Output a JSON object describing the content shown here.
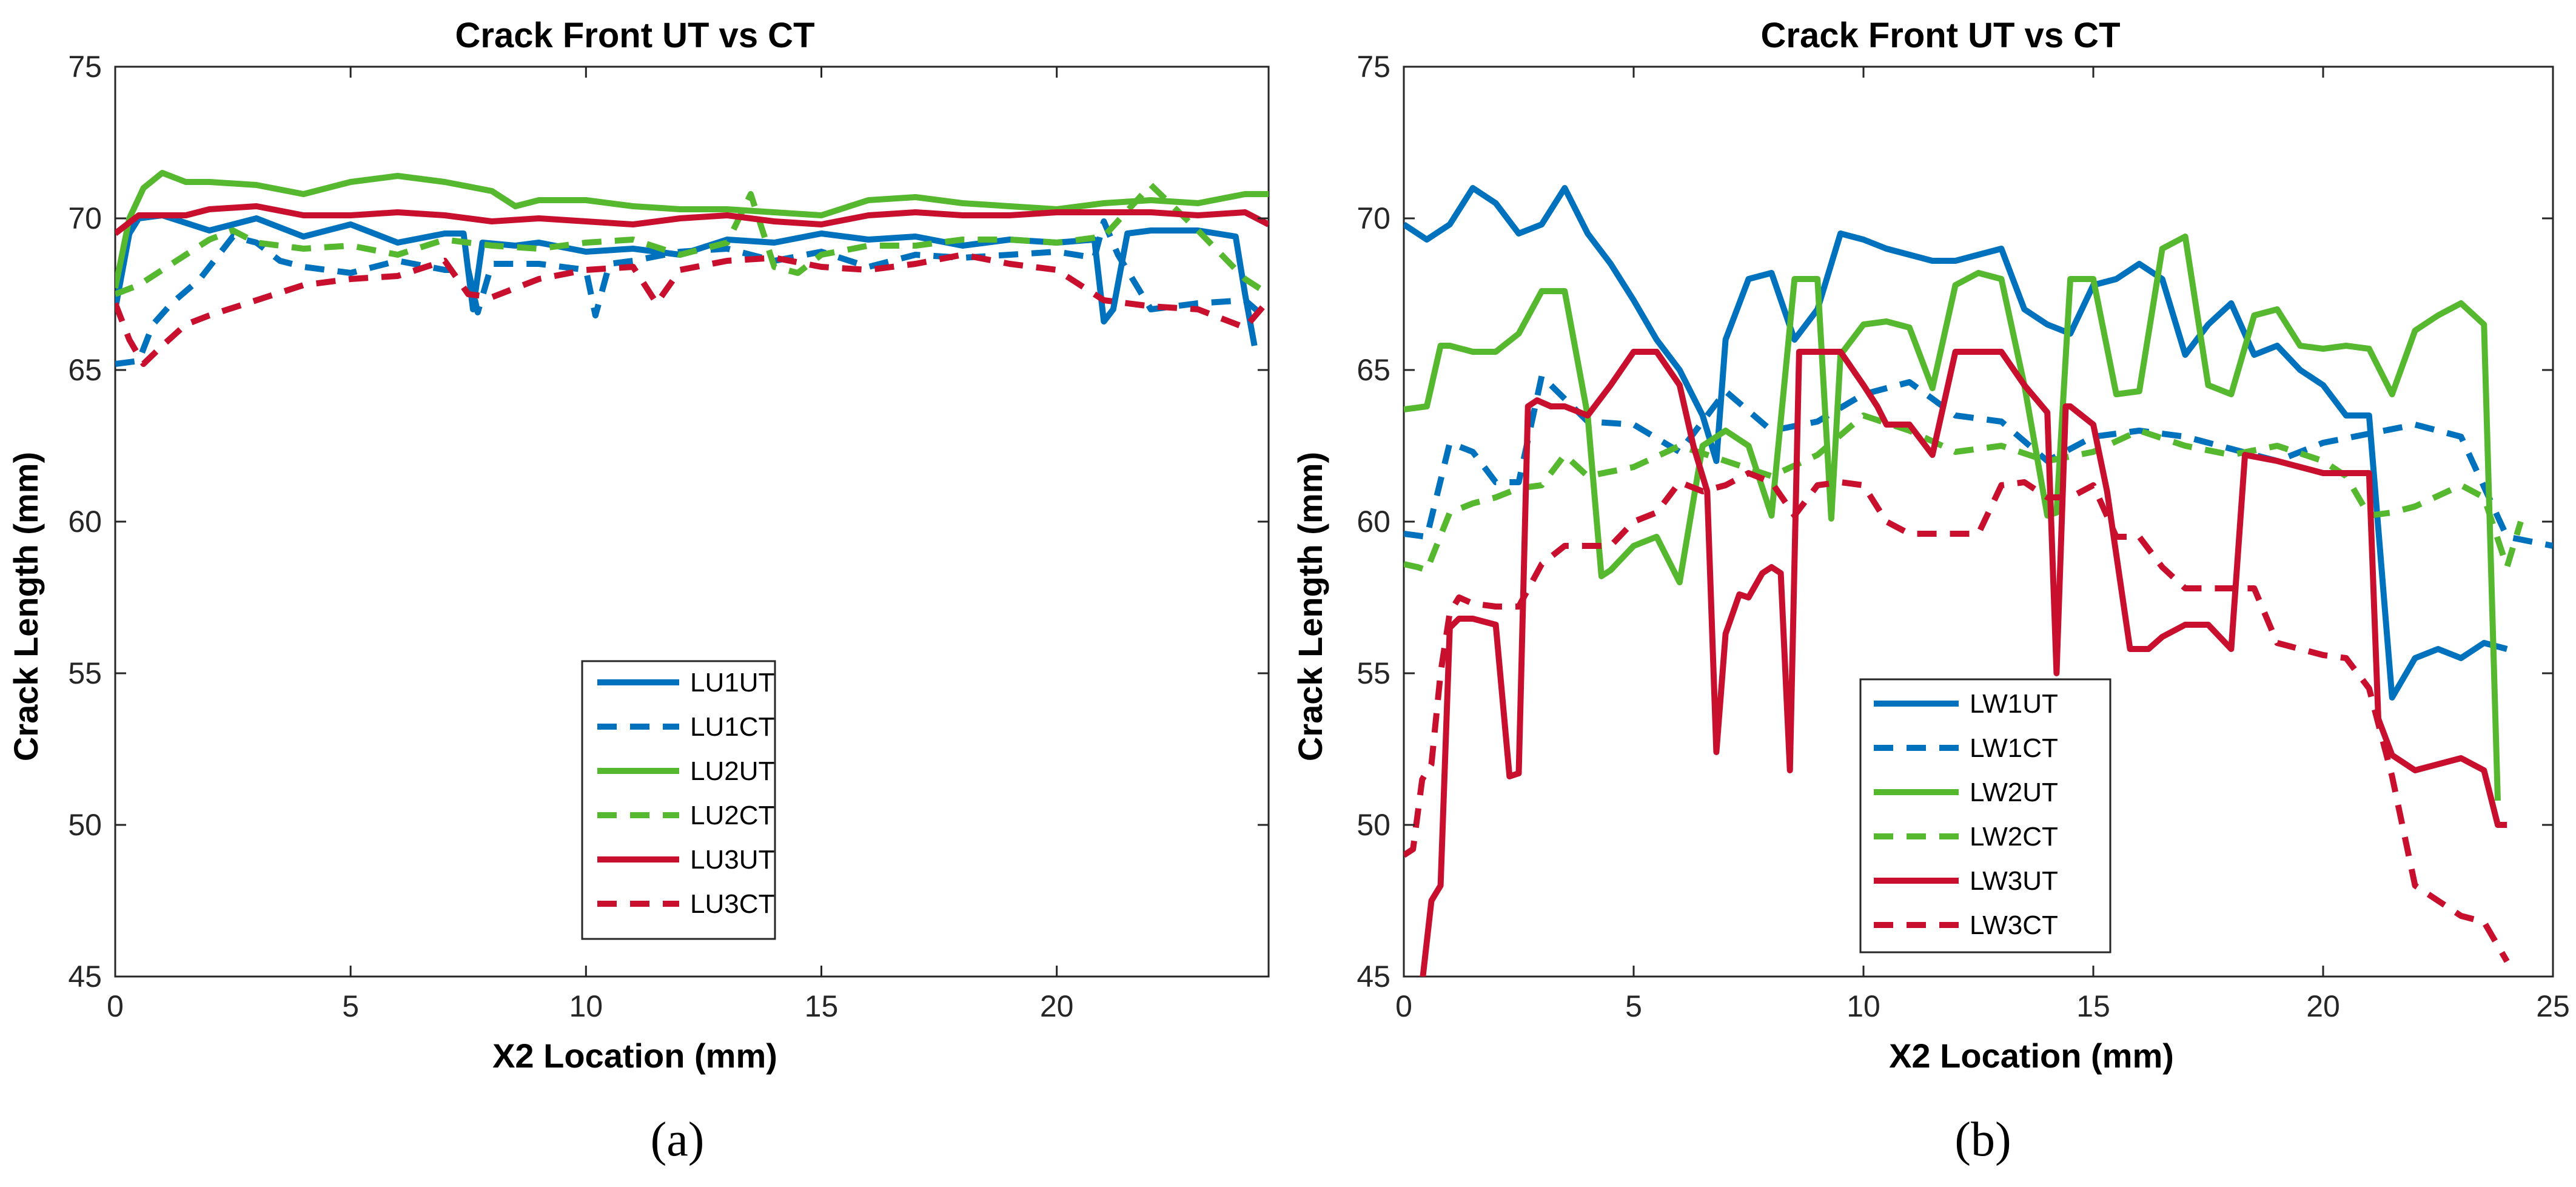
{
  "colors": {
    "blue": "#0072BD",
    "green": "#55B82E",
    "red": "#C8102E"
  },
  "chart_data": [
    {
      "type": "line",
      "caption": "(a)",
      "title": "Crack Front UT vs CT",
      "xlabel": "X2 Location (mm)",
      "ylabel": "Crack Length (mm)",
      "xlim": [
        0,
        24.5
      ],
      "ylim": [
        45,
        75
      ],
      "xticks": [
        0,
        5,
        10,
        15,
        20
      ],
      "yticks": [
        45,
        50,
        55,
        60,
        65,
        70,
        75
      ],
      "legend": "lower-center",
      "series": [
        {
          "name": "LU1UT",
          "color": "blue",
          "dash": "solid",
          "x": [
            0,
            0.3,
            0.5,
            1,
            2,
            3,
            4,
            5,
            6,
            7,
            7.4,
            7.6,
            7.8,
            8.5,
            9,
            10,
            11,
            12,
            13,
            14,
            15,
            16,
            17,
            18,
            19,
            20,
            20.8,
            21,
            21.2,
            21.5,
            22,
            23,
            23.8,
            24,
            24.2
          ],
          "y": [
            67,
            69.5,
            70,
            70.1,
            69.6,
            70,
            69.4,
            69.8,
            69.2,
            69.5,
            69.5,
            67,
            69.2,
            69.1,
            69.2,
            68.9,
            69,
            68.8,
            69.3,
            69.2,
            69.5,
            69.3,
            69.4,
            69.1,
            69.3,
            69.2,
            69.3,
            66.6,
            67,
            69.5,
            69.6,
            69.6,
            69.4,
            67.5,
            65.8
          ]
        },
        {
          "name": "LU1CT",
          "color": "blue",
          "dash": "dash",
          "x": [
            0,
            0.5,
            0.8,
            1.2,
            1.8,
            2.5,
            3,
            3.5,
            4,
            5,
            6,
            7,
            7.5,
            7.7,
            8,
            9,
            10,
            10.2,
            10.5,
            11,
            12,
            13,
            14,
            15,
            16,
            17,
            18,
            19,
            20,
            20.8,
            21,
            21.3,
            22,
            23,
            24,
            24.3
          ],
          "y": [
            65.2,
            65.3,
            66.5,
            67.2,
            68,
            69.4,
            69.2,
            68.6,
            68.4,
            68.2,
            68.6,
            68.3,
            68.3,
            66.9,
            68.5,
            68.5,
            68.3,
            66.8,
            68.5,
            68.6,
            68.9,
            69,
            68.6,
            68.9,
            68.4,
            68.8,
            68.7,
            68.8,
            68.9,
            68.7,
            69.9,
            68.8,
            67,
            67.2,
            67.3,
            66.9
          ]
        },
        {
          "name": "LU2UT",
          "color": "green",
          "dash": "solid",
          "x": [
            0,
            0.3,
            0.6,
            1,
            1.5,
            2,
            3,
            4,
            5,
            6,
            7,
            8,
            8.5,
            9,
            10,
            11,
            12,
            13,
            14,
            15,
            16,
            17,
            18,
            19,
            20,
            21,
            22,
            23,
            24,
            24.5
          ],
          "y": [
            67.7,
            70,
            71,
            71.5,
            71.2,
            71.2,
            71.1,
            70.8,
            71.2,
            71.4,
            71.2,
            70.9,
            70.4,
            70.6,
            70.6,
            70.4,
            70.3,
            70.3,
            70.2,
            70.1,
            70.6,
            70.7,
            70.5,
            70.4,
            70.3,
            70.5,
            70.6,
            70.5,
            70.8,
            70.8
          ]
        },
        {
          "name": "LU2CT",
          "color": "green",
          "dash": "dash",
          "x": [
            0,
            0.5,
            1,
            1.5,
            2,
            2.5,
            3,
            4,
            5,
            6,
            7,
            8,
            9,
            10,
            11,
            12,
            13,
            13.5,
            14,
            14.5,
            15,
            16,
            17,
            18,
            19,
            20,
            21,
            22,
            23,
            24,
            24.5
          ],
          "y": [
            67.5,
            67.8,
            68.3,
            68.8,
            69.3,
            69.6,
            69.2,
            69,
            69.1,
            68.8,
            69.3,
            69.1,
            69,
            69.2,
            69.3,
            68.8,
            69.2,
            70.8,
            68.4,
            68.2,
            68.8,
            69.1,
            69.1,
            69.3,
            69.3,
            69.2,
            69.4,
            71.1,
            69.6,
            68,
            67.5
          ]
        },
        {
          "name": "LU3UT",
          "color": "red",
          "dash": "solid",
          "x": [
            0,
            0.5,
            1,
            1.5,
            2,
            3,
            4,
            5,
            6,
            7,
            8,
            9,
            10,
            11,
            12,
            13,
            14,
            15,
            16,
            17,
            18,
            19,
            20,
            21,
            22,
            23,
            24,
            24.5
          ],
          "y": [
            69.5,
            70.1,
            70.1,
            70.1,
            70.3,
            70.4,
            70.1,
            70.1,
            70.2,
            70.1,
            69.9,
            70,
            69.9,
            69.8,
            70,
            70.1,
            69.9,
            69.8,
            70.1,
            70.2,
            70.1,
            70.1,
            70.2,
            70.2,
            70.2,
            70.1,
            70.2,
            69.8
          ]
        },
        {
          "name": "LU3CT",
          "color": "red",
          "dash": "dash",
          "x": [
            0,
            0.3,
            0.6,
            1,
            1.5,
            2,
            3,
            4,
            5,
            6,
            7,
            7.5,
            8,
            9,
            10,
            11,
            11.5,
            12,
            13,
            14,
            15,
            16,
            17,
            18,
            19,
            20,
            21,
            22,
            23,
            24,
            24.5
          ],
          "y": [
            67.2,
            66,
            65.2,
            65.8,
            66.5,
            66.8,
            67.3,
            67.8,
            68,
            68.1,
            68.6,
            67.5,
            67.4,
            68,
            68.3,
            68.4,
            67.2,
            68.3,
            68.6,
            68.7,
            68.4,
            68.3,
            68.5,
            68.8,
            68.5,
            68.3,
            67.3,
            67.1,
            67,
            66.4,
            67.3
          ]
        }
      ]
    },
    {
      "type": "line",
      "caption": "(b)",
      "title": "Crack Front UT vs CT",
      "xlabel": "X2 Location (mm)",
      "ylabel": "Crack Length (mm)",
      "xlim": [
        0,
        25
      ],
      "ylim": [
        45,
        75
      ],
      "xticks": [
        0,
        5,
        10,
        15,
        20,
        25
      ],
      "yticks": [
        45,
        50,
        55,
        60,
        65,
        70,
        75
      ],
      "legend": "lower-left",
      "series": [
        {
          "name": "LW1UT",
          "color": "blue",
          "dash": "solid",
          "x": [
            0,
            0.5,
            1,
            1.5,
            2,
            2.5,
            3,
            3.5,
            4,
            4.5,
            5,
            5.5,
            6,
            6.5,
            6.8,
            7,
            7.5,
            8,
            8.5,
            9,
            9.5,
            10,
            10.5,
            11,
            11.5,
            12,
            12.5,
            13,
            13.5,
            14,
            14.5,
            15,
            15.5,
            16,
            16.5,
            17,
            17.5,
            18,
            18.5,
            19,
            19.5,
            20,
            20.5,
            21,
            21.5,
            22,
            22.5,
            23,
            23.5,
            24
          ],
          "y": [
            69.8,
            69.3,
            69.8,
            71,
            70.5,
            69.5,
            69.8,
            71,
            69.5,
            68.5,
            67.3,
            66,
            65,
            63.5,
            62,
            66,
            68,
            68.2,
            66,
            67,
            69.5,
            69.3,
            69,
            68.8,
            68.6,
            68.6,
            68.8,
            69,
            67,
            66.5,
            66.2,
            67.8,
            68,
            68.5,
            68,
            65.5,
            66.5,
            67.2,
            65.5,
            65.8,
            65,
            64.5,
            63.5,
            63.5,
            54.2,
            55.5,
            55.8,
            55.5,
            56,
            55.8
          ]
        },
        {
          "name": "LW1CT",
          "color": "blue",
          "dash": "dash",
          "x": [
            0,
            0.5,
            1,
            1.5,
            2,
            2.5,
            3,
            4,
            5,
            6,
            7,
            8,
            9,
            10,
            11,
            12,
            13,
            14,
            15,
            16,
            17,
            18,
            19,
            20,
            21,
            22,
            23,
            24,
            25
          ],
          "y": [
            59.6,
            59.5,
            62.6,
            62.3,
            61.3,
            61.3,
            64.8,
            63.3,
            63.2,
            62.3,
            64.3,
            63,
            63.3,
            64.2,
            64.6,
            63.5,
            63.3,
            62,
            62.8,
            63,
            62.8,
            62.4,
            62,
            62.6,
            62.9,
            63.2,
            62.8,
            59.5,
            59.2
          ]
        },
        {
          "name": "LW2UT",
          "color": "green",
          "dash": "solid",
          "x": [
            0,
            0.5,
            0.8,
            1,
            1.5,
            2,
            2.5,
            3,
            3.5,
            4,
            4.3,
            4.5,
            5,
            5.5,
            6,
            6.5,
            7,
            7.5,
            8,
            8.5,
            9,
            9.3,
            9.5,
            10,
            10.5,
            11,
            11.5,
            12,
            12.5,
            13,
            13.5,
            14,
            14.2,
            14.5,
            15,
            15.5,
            16,
            16.5,
            17,
            17.5,
            18,
            18.5,
            19,
            19.5,
            20,
            20.5,
            21,
            21.5,
            22,
            22.5,
            23,
            23.5,
            23.8
          ],
          "y": [
            63.7,
            63.8,
            65.8,
            65.8,
            65.6,
            65.6,
            66.2,
            67.6,
            67.6,
            63.5,
            58.2,
            58.4,
            59.2,
            59.5,
            58,
            62.5,
            63,
            62.5,
            60.2,
            68,
            68,
            60.1,
            65.5,
            66.5,
            66.6,
            66.4,
            64.4,
            67.8,
            68.2,
            68,
            64.5,
            60.2,
            60.3,
            68,
            68,
            64.2,
            64.3,
            69,
            69.4,
            64.5,
            64.2,
            66.8,
            67,
            65.8,
            65.7,
            65.8,
            65.7,
            64.2,
            66.3,
            66.8,
            67.2,
            66.5,
            50.8
          ]
        },
        {
          "name": "LW2CT",
          "color": "green",
          "dash": "dash",
          "x": [
            0,
            0.3,
            0.5,
            1,
            1.5,
            2,
            2.5,
            3,
            3.5,
            4,
            5,
            6,
            7,
            8,
            9,
            10,
            11,
            12,
            13,
            14,
            15,
            16,
            17,
            18,
            19,
            20,
            20.5,
            21,
            21.5,
            22,
            23,
            23.5,
            24,
            24.3
          ],
          "y": [
            58.6,
            58.5,
            58.4,
            60.3,
            60.6,
            60.8,
            61.1,
            61.2,
            62.2,
            61.5,
            61.8,
            62.5,
            62,
            61.5,
            62.2,
            63.5,
            63,
            62.3,
            62.5,
            62,
            62.3,
            63,
            62.5,
            62.2,
            62.5,
            62,
            61.5,
            60.2,
            60.3,
            60.5,
            61.2,
            60.8,
            58.5,
            60
          ]
        },
        {
          "name": "LW3UT",
          "color": "red",
          "dash": "solid",
          "x": [
            0.4,
            0.6,
            0.8,
            1,
            1.2,
            1.5,
            2,
            2.3,
            2.5,
            2.7,
            2.9,
            3.2,
            3.5,
            4,
            4.5,
            5,
            5.5,
            6,
            6.3,
            6.6,
            6.8,
            7,
            7.3,
            7.5,
            7.8,
            8,
            8.2,
            8.4,
            8.6,
            9,
            9.5,
            10,
            10.3,
            10.5,
            11,
            11.5,
            12,
            12.5,
            13,
            13.5,
            14,
            14.2,
            14.4,
            14.5,
            15,
            15.3,
            15.8,
            16.2,
            16.5,
            17,
            17.5,
            18,
            18.3,
            19,
            19.5,
            20,
            20.5,
            21,
            21.2,
            21.5,
            22,
            22.5,
            23,
            23.5,
            23.8,
            24
          ],
          "y": [
            44.8,
            47.5,
            48,
            56.5,
            56.8,
            56.8,
            56.6,
            51.6,
            51.7,
            63.8,
            64,
            63.8,
            63.8,
            63.5,
            64.5,
            65.6,
            65.6,
            64.5,
            62.5,
            61,
            52.4,
            56.3,
            57.6,
            57.5,
            58.3,
            58.5,
            58.3,
            51.8,
            65.6,
            65.6,
            65.6,
            64.5,
            63.8,
            63.2,
            63.2,
            62.2,
            65.6,
            65.6,
            65.6,
            64.5,
            63.6,
            55,
            63.8,
            63.8,
            63.2,
            61,
            55.8,
            55.8,
            56.2,
            56.6,
            56.6,
            55.8,
            62.2,
            62,
            61.8,
            61.6,
            61.6,
            61.6,
            53.5,
            52.3,
            51.8,
            52,
            52.2,
            51.8,
            50,
            50
          ]
        },
        {
          "name": "LW3CT",
          "color": "red",
          "dash": "dash",
          "x": [
            0,
            0.2,
            0.4,
            0.6,
            0.8,
            1,
            1.2,
            1.5,
            2,
            2.5,
            3,
            3.5,
            4,
            4.5,
            5,
            5.5,
            6,
            6.5,
            7,
            7.5,
            8,
            8.5,
            9,
            9.5,
            10,
            10.5,
            11,
            11.5,
            12,
            12.5,
            13,
            13.5,
            14,
            14.5,
            15,
            15.5,
            16,
            16.5,
            17,
            17.5,
            18,
            18.5,
            19,
            19.5,
            20,
            20.5,
            21,
            21.5,
            22,
            22.5,
            23,
            23.5,
            24
          ],
          "y": [
            49,
            49.2,
            51.5,
            52,
            55,
            57,
            57.5,
            57.3,
            57.2,
            57.2,
            58.6,
            59.2,
            59.2,
            59.2,
            60,
            60.3,
            61.3,
            61,
            61.2,
            61.6,
            61.3,
            60.2,
            61.2,
            61.3,
            61.2,
            60,
            59.6,
            59.6,
            59.6,
            59.6,
            61.2,
            61.3,
            60.8,
            60.8,
            61.2,
            59.5,
            59.5,
            58.5,
            57.8,
            57.8,
            57.8,
            57.8,
            56,
            55.8,
            55.6,
            55.5,
            54.5,
            51.6,
            48,
            47.5,
            47,
            46.8,
            45.5
          ]
        }
      ]
    }
  ]
}
